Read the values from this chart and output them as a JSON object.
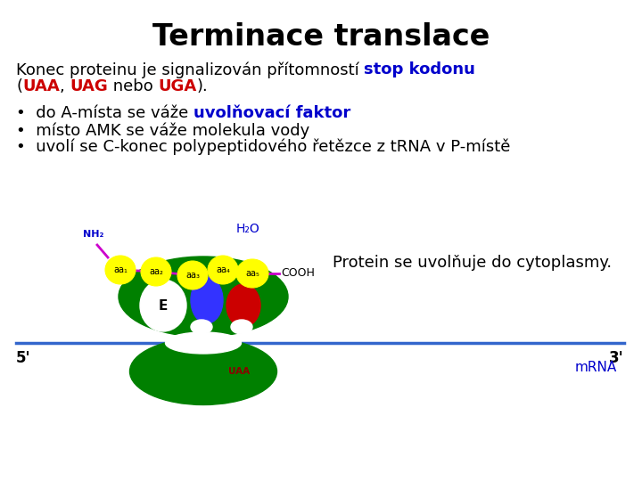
{
  "title": "Terminace translace",
  "title_fontsize": 24,
  "bg_color": "#ffffff",
  "text_color": "#000000",
  "blue_color": "#0000cc",
  "red_color": "#cc0000",
  "h2o_label": "H₂O",
  "nh2_label": "NH₂",
  "cooh_label": "COOH",
  "protein_text": "Protein se uvolňuje do cytoplasmy.",
  "five_prime": "5'",
  "three_prime": "3'",
  "mrna_label": "mRNA",
  "e_label": "E",
  "uaa_label": "UAA",
  "aa_labels": [
    "aa₁",
    "aa₂",
    "aa₃",
    "aa₄",
    "aa₅"
  ],
  "yellow_color": "#ffff00",
  "green_color": "#008000",
  "blue_ribosome": "#3333ff",
  "red_tRNA": "#cc0000",
  "magenta_color": "#cc00cc",
  "white_color": "#ffffff",
  "brown_color": "#8b0000",
  "text_fontsize": 13,
  "bullet_fontsize": 13
}
